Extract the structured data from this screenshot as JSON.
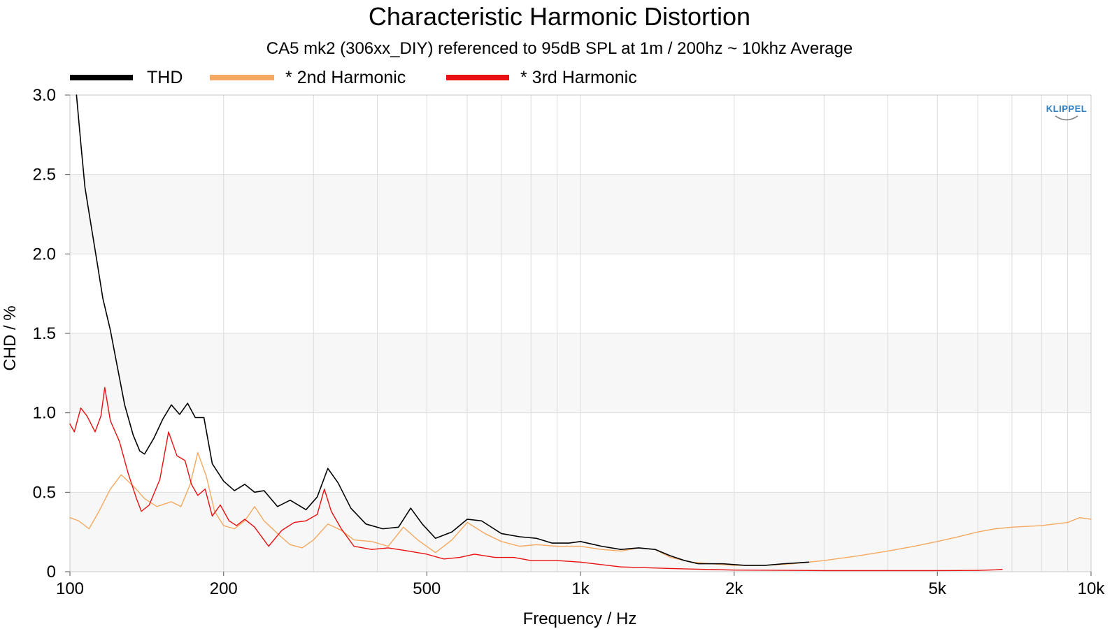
{
  "chart_data": {
    "type": "line",
    "title": "Characteristic Harmonic Distortion",
    "subtitle": "CA5 mk2 (306xx_DIY) referenced to 95dB SPL at 1m / 200hz ~ 10khz Average",
    "xlabel": "Frequency / Hz",
    "ylabel": "CHD / %",
    "xscale": "log",
    "xlim": [
      100,
      10000
    ],
    "ylim": [
      0,
      3.0
    ],
    "grid": true,
    "legend_position": "top-left",
    "logo_text": "KLIPPEL",
    "x_ticks": [
      {
        "value": 100,
        "label": "100"
      },
      {
        "value": 200,
        "label": "200"
      },
      {
        "value": 500,
        "label": "500"
      },
      {
        "value": 1000,
        "label": "1k"
      },
      {
        "value": 2000,
        "label": "2k"
      },
      {
        "value": 5000,
        "label": "5k"
      },
      {
        "value": 10000,
        "label": "10k"
      }
    ],
    "y_ticks": [
      {
        "value": 0,
        "label": "0"
      },
      {
        "value": 0.5,
        "label": "0.5"
      },
      {
        "value": 1.0,
        "label": "1.0"
      },
      {
        "value": 1.5,
        "label": "1.5"
      },
      {
        "value": 2.0,
        "label": "2.0"
      },
      {
        "value": 2.5,
        "label": "2.5"
      },
      {
        "value": 3.0,
        "label": "3.0"
      }
    ],
    "series": [
      {
        "name": "THD",
        "color": "#000000",
        "points": [
          [
            103,
            3.0
          ],
          [
            105,
            2.7
          ],
          [
            107,
            2.42
          ],
          [
            110,
            2.18
          ],
          [
            113,
            1.95
          ],
          [
            116,
            1.72
          ],
          [
            120,
            1.52
          ],
          [
            124,
            1.28
          ],
          [
            128,
            1.05
          ],
          [
            133,
            0.86
          ],
          [
            137,
            0.76
          ],
          [
            140,
            0.74
          ],
          [
            146,
            0.84
          ],
          [
            152,
            0.96
          ],
          [
            158,
            1.05
          ],
          [
            164,
            0.99
          ],
          [
            170,
            1.06
          ],
          [
            176,
            0.97
          ],
          [
            183,
            0.97
          ],
          [
            190,
            0.68
          ],
          [
            200,
            0.57
          ],
          [
            210,
            0.51
          ],
          [
            220,
            0.55
          ],
          [
            230,
            0.5
          ],
          [
            240,
            0.51
          ],
          [
            255,
            0.41
          ],
          [
            270,
            0.45
          ],
          [
            290,
            0.39
          ],
          [
            305,
            0.47
          ],
          [
            320,
            0.65
          ],
          [
            335,
            0.56
          ],
          [
            355,
            0.4
          ],
          [
            380,
            0.3
          ],
          [
            410,
            0.27
          ],
          [
            440,
            0.28
          ],
          [
            465,
            0.4
          ],
          [
            490,
            0.3
          ],
          [
            520,
            0.21
          ],
          [
            560,
            0.25
          ],
          [
            600,
            0.33
          ],
          [
            640,
            0.32
          ],
          [
            700,
            0.24
          ],
          [
            760,
            0.22
          ],
          [
            820,
            0.21
          ],
          [
            880,
            0.18
          ],
          [
            950,
            0.18
          ],
          [
            1000,
            0.19
          ],
          [
            1100,
            0.16
          ],
          [
            1200,
            0.14
          ],
          [
            1300,
            0.15
          ],
          [
            1400,
            0.14
          ],
          [
            1500,
            0.1
          ],
          [
            1600,
            0.07
          ],
          [
            1700,
            0.05
          ],
          [
            1900,
            0.05
          ],
          [
            2100,
            0.04
          ],
          [
            2300,
            0.04
          ],
          [
            2500,
            0.05
          ],
          [
            2800,
            0.06
          ]
        ]
      },
      {
        "name": "* 2nd Harmonic",
        "color": "#f5a860",
        "points": [
          [
            100,
            0.34
          ],
          [
            104,
            0.32
          ],
          [
            109,
            0.27
          ],
          [
            114,
            0.38
          ],
          [
            120,
            0.52
          ],
          [
            126,
            0.61
          ],
          [
            133,
            0.54
          ],
          [
            140,
            0.46
          ],
          [
            148,
            0.41
          ],
          [
            158,
            0.44
          ],
          [
            165,
            0.41
          ],
          [
            172,
            0.55
          ],
          [
            178,
            0.75
          ],
          [
            185,
            0.6
          ],
          [
            192,
            0.38
          ],
          [
            200,
            0.29
          ],
          [
            210,
            0.27
          ],
          [
            220,
            0.32
          ],
          [
            230,
            0.41
          ],
          [
            240,
            0.32
          ],
          [
            255,
            0.24
          ],
          [
            270,
            0.17
          ],
          [
            285,
            0.15
          ],
          [
            300,
            0.2
          ],
          [
            320,
            0.3
          ],
          [
            340,
            0.26
          ],
          [
            360,
            0.2
          ],
          [
            390,
            0.19
          ],
          [
            420,
            0.16
          ],
          [
            450,
            0.28
          ],
          [
            480,
            0.2
          ],
          [
            520,
            0.12
          ],
          [
            560,
            0.2
          ],
          [
            600,
            0.31
          ],
          [
            650,
            0.24
          ],
          [
            700,
            0.19
          ],
          [
            760,
            0.16
          ],
          [
            820,
            0.17
          ],
          [
            900,
            0.16
          ],
          [
            1000,
            0.16
          ],
          [
            1100,
            0.14
          ],
          [
            1200,
            0.13
          ],
          [
            1300,
            0.15
          ],
          [
            1400,
            0.14
          ],
          [
            1500,
            0.09
          ],
          [
            1650,
            0.06
          ],
          [
            1800,
            0.05
          ],
          [
            2000,
            0.04
          ],
          [
            2300,
            0.04
          ],
          [
            2600,
            0.05
          ],
          [
            3000,
            0.07
          ],
          [
            3500,
            0.1
          ],
          [
            4000,
            0.13
          ],
          [
            4500,
            0.16
          ],
          [
            5000,
            0.19
          ],
          [
            5500,
            0.22
          ],
          [
            6000,
            0.25
          ],
          [
            6500,
            0.27
          ],
          [
            7000,
            0.28
          ],
          [
            8000,
            0.29
          ],
          [
            9000,
            0.31
          ],
          [
            9500,
            0.34
          ],
          [
            10000,
            0.33
          ]
        ]
      },
      {
        "name": "* 3rd Harmonic",
        "color": "#e81010",
        "points": [
          [
            100,
            0.93
          ],
          [
            102,
            0.88
          ],
          [
            105,
            1.03
          ],
          [
            108,
            0.98
          ],
          [
            112,
            0.88
          ],
          [
            115,
            0.98
          ],
          [
            117,
            1.16
          ],
          [
            120,
            0.95
          ],
          [
            125,
            0.82
          ],
          [
            130,
            0.62
          ],
          [
            135,
            0.46
          ],
          [
            138,
            0.38
          ],
          [
            143,
            0.42
          ],
          [
            150,
            0.58
          ],
          [
            156,
            0.88
          ],
          [
            162,
            0.73
          ],
          [
            168,
            0.7
          ],
          [
            173,
            0.55
          ],
          [
            178,
            0.48
          ],
          [
            184,
            0.52
          ],
          [
            190,
            0.35
          ],
          [
            197,
            0.42
          ],
          [
            205,
            0.32
          ],
          [
            212,
            0.29
          ],
          [
            220,
            0.33
          ],
          [
            230,
            0.28
          ],
          [
            245,
            0.16
          ],
          [
            260,
            0.26
          ],
          [
            275,
            0.31
          ],
          [
            290,
            0.32
          ],
          [
            305,
            0.36
          ],
          [
            315,
            0.52
          ],
          [
            325,
            0.38
          ],
          [
            340,
            0.27
          ],
          [
            360,
            0.16
          ],
          [
            390,
            0.14
          ],
          [
            420,
            0.15
          ],
          [
            460,
            0.13
          ],
          [
            500,
            0.11
          ],
          [
            540,
            0.08
          ],
          [
            580,
            0.09
          ],
          [
            620,
            0.11
          ],
          [
            680,
            0.09
          ],
          [
            740,
            0.09
          ],
          [
            800,
            0.07
          ],
          [
            900,
            0.07
          ],
          [
            1000,
            0.06
          ],
          [
            1200,
            0.03
          ],
          [
            1500,
            0.02
          ],
          [
            2000,
            0.01
          ],
          [
            3000,
            0.007
          ],
          [
            4000,
            0.007
          ],
          [
            5000,
            0.007
          ],
          [
            6000,
            0.008
          ],
          [
            6500,
            0.012
          ],
          [
            6700,
            0.015
          ]
        ]
      }
    ]
  }
}
